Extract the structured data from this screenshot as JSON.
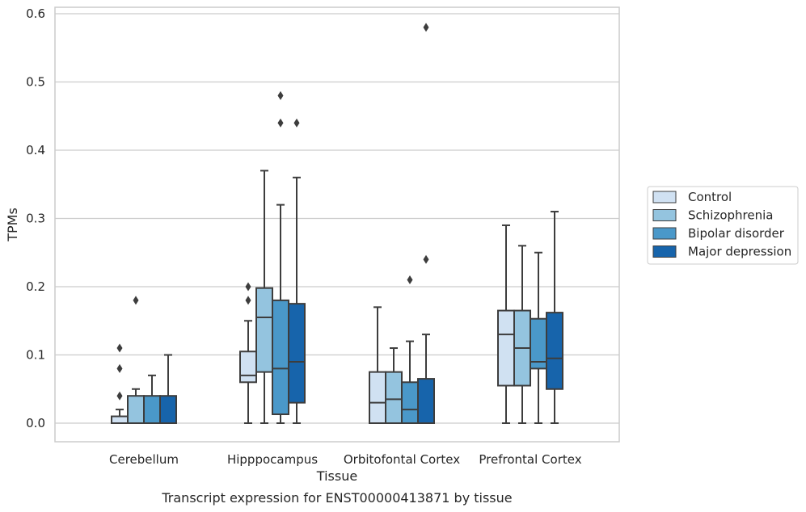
{
  "chart_data": {
    "type": "boxplot",
    "caption": "Transcript expression for ENST00000413871 by tissue",
    "xlabel": "Tissue",
    "ylabel": "TPMs",
    "ylim": [
      -0.028,
      0.612
    ],
    "yticks": [
      0.0,
      0.1,
      0.2,
      0.3,
      0.4,
      0.5,
      0.6
    ],
    "ytick_labels": [
      "0.0",
      "0.1",
      "0.2",
      "0.3",
      "0.4",
      "0.5",
      "0.6"
    ],
    "grid": "horizontal",
    "legend_position": "right",
    "categories": [
      "Cerebellum",
      "Hipppocampus",
      "Orbitofontal Cortex",
      "Prefrontal Cortex"
    ],
    "series": [
      {
        "name": "Control",
        "color": "#d0e1f2",
        "boxes": [
          {
            "q1": 0.0,
            "median": 0.0,
            "q3": 0.01,
            "whislo": 0.0,
            "whishi": 0.02,
            "fliers": [
              0.04,
              0.08,
              0.11
            ]
          },
          {
            "q1": 0.06,
            "median": 0.07,
            "q3": 0.105,
            "whislo": 0.0,
            "whishi": 0.15,
            "fliers": [
              0.18,
              0.2
            ]
          },
          {
            "q1": 0.0,
            "median": 0.03,
            "q3": 0.075,
            "whislo": 0.0,
            "whishi": 0.17,
            "fliers": []
          },
          {
            "q1": 0.055,
            "median": 0.13,
            "q3": 0.165,
            "whislo": 0.0,
            "whishi": 0.29,
            "fliers": []
          }
        ]
      },
      {
        "name": "Schizophrenia",
        "color": "#94c4df",
        "boxes": [
          {
            "q1": 0.0,
            "median": 0.0,
            "q3": 0.04,
            "whislo": 0.0,
            "whishi": 0.05,
            "fliers": [
              0.18
            ]
          },
          {
            "q1": 0.075,
            "median": 0.155,
            "q3": 0.198,
            "whislo": 0.0,
            "whishi": 0.37,
            "fliers": []
          },
          {
            "q1": 0.0,
            "median": 0.035,
            "q3": 0.075,
            "whislo": 0.0,
            "whishi": 0.11,
            "fliers": []
          },
          {
            "q1": 0.055,
            "median": 0.11,
            "q3": 0.165,
            "whislo": 0.0,
            "whishi": 0.26,
            "fliers": []
          }
        ]
      },
      {
        "name": "Bipolar disorder",
        "color": "#4a98c9",
        "boxes": [
          {
            "q1": 0.0,
            "median": 0.0,
            "q3": 0.04,
            "whislo": 0.0,
            "whishi": 0.07,
            "fliers": []
          },
          {
            "q1": 0.013,
            "median": 0.08,
            "q3": 0.18,
            "whislo": 0.0,
            "whishi": 0.32,
            "fliers": [
              0.44,
              0.48
            ]
          },
          {
            "q1": 0.0,
            "median": 0.02,
            "q3": 0.06,
            "whislo": 0.0,
            "whishi": 0.12,
            "fliers": [
              0.21
            ]
          },
          {
            "q1": 0.08,
            "median": 0.09,
            "q3": 0.153,
            "whislo": 0.0,
            "whishi": 0.25,
            "fliers": []
          }
        ]
      },
      {
        "name": "Major depression",
        "color": "#1764ab",
        "boxes": [
          {
            "q1": 0.0,
            "median": 0.0,
            "q3": 0.04,
            "whislo": 0.0,
            "whishi": 0.1,
            "fliers": []
          },
          {
            "q1": 0.03,
            "median": 0.09,
            "q3": 0.175,
            "whislo": 0.0,
            "whishi": 0.36,
            "fliers": [
              0.44
            ]
          },
          {
            "q1": 0.0,
            "median": 0.0,
            "q3": 0.065,
            "whislo": 0.0,
            "whishi": 0.13,
            "fliers": [
              0.24,
              0.58
            ]
          },
          {
            "q1": 0.05,
            "median": 0.095,
            "q3": 0.162,
            "whislo": 0.0,
            "whishi": 0.31,
            "fliers": []
          }
        ]
      }
    ]
  }
}
